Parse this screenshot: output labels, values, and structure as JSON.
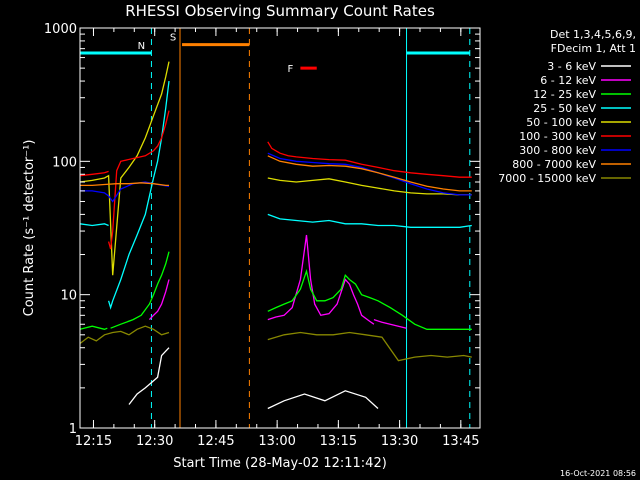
{
  "chart_data": {
    "type": "line",
    "title": "RHESSI Observing Summary Count Rates",
    "xlabel": "Start Time (28-May-02 12:11:42)",
    "ylabel": "Count Rate (s⁻¹ detector⁻¹)",
    "y_scale": "log",
    "ylim": [
      1,
      1000
    ],
    "xlim_minutes_after_start": [
      0,
      98
    ],
    "x_ticks": [
      {
        "label": "12:15",
        "min": 3.3
      },
      {
        "label": "12:30",
        "min": 18.3
      },
      {
        "label": "12:45",
        "min": 33.3
      },
      {
        "label": "13:00",
        "min": 48.3
      },
      {
        "label": "13:15",
        "min": 63.3
      },
      {
        "label": "13:30",
        "min": 78.3
      },
      {
        "label": "13:45",
        "min": 93.3
      }
    ],
    "y_ticks": [
      {
        "label": "1",
        "value": 1
      },
      {
        "label": "10",
        "value": 10
      },
      {
        "label": "100",
        "value": 100
      },
      {
        "label": "1000",
        "value": 1000
      }
    ],
    "legend_header": [
      "Det 1,3,4,5,6,9,",
      "FDecim 1, Att 1"
    ],
    "legend_placement": "right",
    "series": [
      {
        "name": "3 - 6 keV",
        "color": "#ffffff",
        "segments": [
          {
            "x": [
              12,
              14,
              16,
              19,
              20,
              21.8
            ],
            "y": [
              1.5,
              1.8,
              2.0,
              2.4,
              3.5,
              4.0
            ]
          },
          {
            "x": [
              46,
              50,
              55,
              60,
              65,
              70,
              73
            ],
            "y": [
              1.4,
              1.6,
              1.8,
              1.6,
              1.9,
              1.7,
              1.4
            ]
          }
        ]
      },
      {
        "name": "6 - 12 keV",
        "color": "#ff00ff",
        "segments": [
          {
            "x": [
              17,
              18,
              19,
              20,
              21,
              21.8
            ],
            "y": [
              6.5,
              7.0,
              7.5,
              8.5,
              10.5,
              13
            ]
          },
          {
            "x": [
              46,
              48,
              50,
              52,
              54,
              55.5,
              56.5,
              57.5,
              59,
              61,
              63,
              65,
              66,
              67,
              68,
              69,
              71,
              72
            ],
            "y": [
              6.5,
              6.8,
              7.0,
              8.0,
              13,
              28,
              13,
              8.5,
              7.0,
              7.2,
              8.5,
              13,
              12,
              10,
              8.5,
              7.0,
              6.3,
              6.0
            ]
          },
          {
            "x": [
              72,
              74,
              76,
              78,
              80
            ],
            "y": [
              6.5,
              6.2,
              6.0,
              5.8,
              5.6
            ]
          }
        ]
      },
      {
        "name": "12 - 25 keV",
        "color": "#00ff00",
        "segments": [
          {
            "x": [
              0,
              3,
              6,
              6.7
            ],
            "y": [
              5.5,
              5.8,
              5.5,
              5.6
            ]
          },
          {
            "x": [
              7.5,
              10,
              13,
              15,
              17,
              18,
              19,
              20,
              21,
              21.8
            ],
            "y": [
              5.6,
              6.0,
              6.5,
              7.0,
              8.5,
              10,
              12,
              14,
              17,
              21
            ]
          },
          {
            "x": [
              46,
              48,
              50,
              52,
              54,
              55.5,
              56.5,
              58,
              60,
              62,
              64,
              65,
              66,
              67.5,
              69,
              71,
              73,
              76,
              79,
              82,
              85,
              88,
              91,
              94,
              96
            ],
            "y": [
              7.5,
              8.0,
              8.5,
              9.0,
              11,
              15,
              11,
              9.0,
              9.0,
              9.5,
              11,
              14,
              13,
              12,
              10,
              9.5,
              9.0,
              8.0,
              7.0,
              6.0,
              5.5,
              5.5,
              5.5,
              5.5,
              5.5
            ]
          }
        ]
      },
      {
        "name": "25 - 50 keV",
        "color": "#00ffff",
        "segments": [
          {
            "x": [
              0,
              3,
              6,
              7
            ],
            "y": [
              34,
              33,
              34,
              33
            ]
          },
          {
            "x": [
              7,
              7.5,
              8,
              10,
              12,
              14,
              16,
              18,
              19,
              20,
              21,
              21.8
            ],
            "y": [
              9,
              8,
              9,
              13,
              20,
              28,
              40,
              75,
              100,
              150,
              250,
              400
            ]
          },
          {
            "x": [
              46,
              49,
              53,
              57,
              61,
              65,
              69,
              73,
              77,
              81,
              85,
              89,
              93,
              96
            ],
            "y": [
              40,
              37,
              36,
              35,
              36,
              34,
              34,
              33,
              33,
              32,
              32,
              32,
              32,
              33
            ]
          }
        ]
      },
      {
        "name": "50 - 100 keV",
        "color": "#dddd00",
        "segments": [
          {
            "x": [
              0,
              3,
              6,
              7,
              8,
              10,
              12,
              14,
              16,
              18,
              20,
              21,
              21.8
            ],
            "y": [
              70,
              72,
              75,
              78,
              14,
              75,
              90,
              110,
              150,
              220,
              320,
              430,
              560
            ]
          },
          {
            "x": [
              46,
              49,
              53,
              57,
              61,
              65,
              69,
              73,
              77,
              81,
              85,
              89,
              93,
              96
            ],
            "y": [
              75,
              72,
              70,
              72,
              74,
              70,
              66,
              63,
              60,
              58,
              57,
              57,
              56,
              56
            ]
          }
        ]
      },
      {
        "name": "100 - 300 keV",
        "color": "#ff0000",
        "segments": [
          {
            "x": [
              0,
              3,
              6,
              7
            ],
            "y": [
              78,
              80,
              82,
              84
            ]
          },
          {
            "x": [
              7,
              7.5,
              8,
              9,
              10,
              13,
              16,
              18,
              19,
              20,
              21,
              21.8
            ],
            "y": [
              25,
              22,
              30,
              85,
              100,
              105,
              110,
              120,
              130,
              150,
              190,
              240
            ]
          },
          {
            "x": [
              46,
              47,
              49,
              51,
              53,
              57,
              61,
              65,
              69,
              73,
              77,
              81,
              85,
              89,
              93,
              96
            ],
            "y": [
              140,
              125,
              115,
              110,
              108,
              105,
              103,
              102,
              95,
              90,
              85,
              82,
              80,
              78,
              76,
              76
            ]
          }
        ]
      },
      {
        "name": "300 - 800 keV",
        "color": "#0000ff",
        "segments": [
          {
            "x": [
              0,
              3,
              6,
              7,
              8,
              10,
              13,
              16,
              19,
              21.8
            ],
            "y": [
              60,
              60,
              58,
              55,
              50,
              62,
              68,
              70,
              67,
              65
            ]
          },
          {
            "x": [
              46,
              49,
              53,
              57,
              61,
              65,
              69,
              73,
              77,
              81,
              85,
              89,
              93,
              96
            ],
            "y": [
              115,
              105,
              100,
              98,
              96,
              95,
              90,
              82,
              75,
              68,
              62,
              58,
              56,
              56
            ]
          }
        ]
      },
      {
        "name": "800 - 7000 keV",
        "color": "#ff8000",
        "segments": [
          {
            "x": [
              0,
              3,
              6,
              9,
              12,
              15,
              18,
              21,
              21.8
            ],
            "y": [
              66,
              66,
              67,
              68,
              68,
              69,
              68,
              66,
              66
            ]
          },
          {
            "x": [
              46,
              49,
              53,
              57,
              61,
              65,
              69,
              73,
              77,
              81,
              85,
              89,
              93,
              96
            ],
            "y": [
              110,
              100,
              95,
              92,
              93,
              92,
              88,
              82,
              76,
              70,
              65,
              62,
              60,
              60
            ]
          }
        ]
      },
      {
        "name": "7000 - 15000 keV",
        "color": "#888800",
        "segments": [
          {
            "x": [
              0,
              2,
              4,
              6,
              8,
              10,
              12,
              14,
              16,
              18,
              20,
              21.8
            ],
            "y": [
              4.3,
              4.8,
              4.5,
              5.0,
              5.2,
              5.3,
              5.0,
              5.5,
              5.8,
              5.5,
              5.0,
              5.2
            ]
          },
          {
            "x": [
              46,
              50,
              54,
              58,
              62,
              66,
              70,
              74,
              78,
              82,
              86,
              90,
              94,
              96
            ],
            "y": [
              4.6,
              5.0,
              5.2,
              5.0,
              5.0,
              5.2,
              5.0,
              4.8,
              3.2,
              3.4,
              3.5,
              3.4,
              3.5,
              3.4
            ]
          }
        ]
      }
    ],
    "annotations": [
      {
        "label": "N",
        "color": "#00ffff",
        "bar_value": 650,
        "bar_ranges": [
          [
            0,
            17.5
          ],
          [
            80,
            95.5
          ]
        ],
        "solid_lines_min": [
          0,
          80
        ],
        "dashed_lines_min": [
          17.5,
          95.5
        ]
      },
      {
        "label": "S",
        "color": "#ff8000",
        "bar_value": 750,
        "bar_ranges": [
          [
            25,
            41.5
          ]
        ],
        "solid_lines_min": [
          24.5
        ],
        "dashed_lines_min": [
          41.5
        ]
      },
      {
        "label": "F",
        "color": "#ff0000",
        "bar_value": 500,
        "bar_ranges": [
          [
            54,
            58
          ]
        ]
      }
    ]
  },
  "footer": {
    "timestamp": "16-Oct-2021 08:56"
  }
}
